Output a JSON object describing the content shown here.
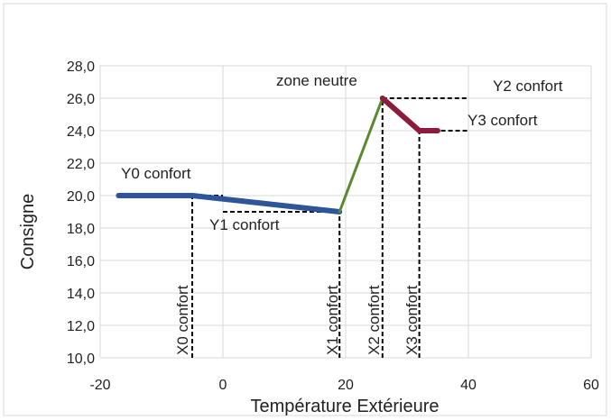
{
  "chart_data": {
    "type": "line",
    "xlabel": "Température Extérieure",
    "ylabel": "Consigne",
    "xlim": [
      -20,
      60
    ],
    "ylim": [
      10,
      28
    ],
    "grid": true,
    "x_ticks": [
      -20,
      0,
      20,
      40,
      60
    ],
    "x_tick_labels": [
      "-20",
      "0",
      "20",
      "40",
      "60"
    ],
    "y_ticks": [
      10,
      12,
      14,
      16,
      18,
      20,
      22,
      24,
      26,
      28
    ],
    "y_tick_labels": [
      "10,0",
      "12,0",
      "14,0",
      "16,0",
      "18,0",
      "20,0",
      "22,0",
      "24,0",
      "26,0",
      "28,0"
    ],
    "series": [
      {
        "color": "#2e5597",
        "line_width": 6,
        "x": [
          -17,
          -5,
          19
        ],
        "y": [
          20,
          20,
          19
        ]
      },
      {
        "color": "#5a8a2f",
        "line_width": 3,
        "x": [
          19,
          26
        ],
        "y": [
          19,
          26
        ]
      },
      {
        "color": "#8c1c3c",
        "line_width": 6,
        "x": [
          26,
          32,
          35
        ],
        "y": [
          26,
          24,
          24
        ]
      }
    ],
    "guides": [
      {
        "x1": -5,
        "y1": 10,
        "x2": -5,
        "y2": 20
      },
      {
        "x1": -5,
        "y1": 20,
        "x2": 0,
        "y2": 20
      },
      {
        "x1": 19,
        "y1": 10,
        "x2": 19,
        "y2": 19
      },
      {
        "x1": 0,
        "y1": 19,
        "x2": 19,
        "y2": 19
      },
      {
        "x1": 26,
        "y1": 10,
        "x2": 26,
        "y2": 26
      },
      {
        "x1": 26,
        "y1": 26,
        "x2": 40,
        "y2": 26
      },
      {
        "x1": 32,
        "y1": 10,
        "x2": 32,
        "y2": 24
      },
      {
        "x1": 32,
        "y1": 24,
        "x2": 40,
        "y2": 24
      }
    ],
    "annotations": {
      "y0": "Y0 confort",
      "y1": "Y1 confort",
      "y2": "Y2 confort",
      "y3": "Y3 confort",
      "zone": "zone neutre",
      "x0": "X0 confort",
      "x1": "X1 confort",
      "x2": "X2 confort",
      "x3": "X3 confort"
    }
  }
}
